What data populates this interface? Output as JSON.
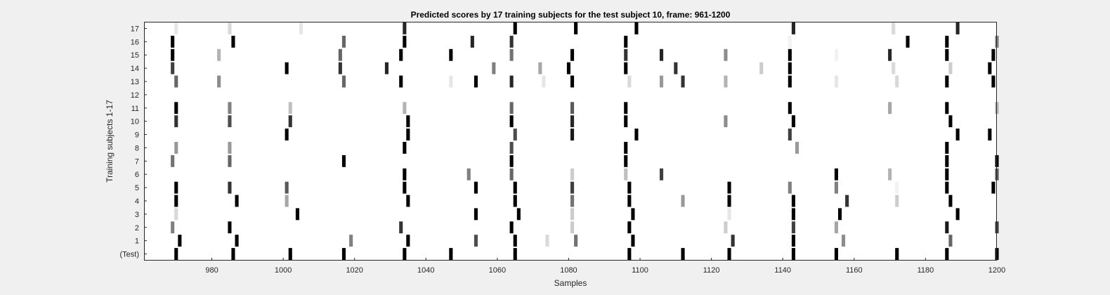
{
  "chart_data": {
    "type": "heatmap",
    "title": "Predicted scores by 17 training subjects for the test subject 10, frame: 961-1200",
    "xlabel": "Samples",
    "ylabel": "Training subjects 1-17",
    "xlim": [
      961,
      1200
    ],
    "xticks": [
      980,
      1000,
      1020,
      1040,
      1060,
      1080,
      1100,
      1120,
      1140,
      1160,
      1180,
      1200
    ],
    "rows": [
      "(Test)",
      "1",
      "2",
      "3",
      "4",
      "5",
      "6",
      "7",
      "8",
      "9",
      "10",
      "11",
      "12",
      "13",
      "14",
      "15",
      "16",
      "17"
    ],
    "colormap": "gray-inverted (1 = black, 0 = white)",
    "grid": false,
    "legend": "none",
    "marks": [
      {
        "row": 0,
        "x": [
          970,
          986,
          1002,
          1017,
          1034,
          1047,
          1065,
          1097,
          1112,
          1125,
          1143,
          1155,
          1172,
          1186,
          1200
        ],
        "v": [
          1,
          1,
          1,
          1,
          1,
          1,
          1,
          1,
          1,
          1,
          1,
          1,
          1,
          1,
          1
        ]
      },
      {
        "row": 1,
        "x": [
          971,
          987,
          1019,
          1035,
          1054,
          1074,
          1065,
          1082,
          1098,
          1126,
          1143,
          1157,
          1187
        ],
        "v": [
          1,
          1,
          0.5,
          1,
          0.7,
          0.15,
          1,
          0.55,
          1,
          0.8,
          1,
          0.45,
          0.6
        ]
      },
      {
        "row": 2,
        "x": [
          969,
          985,
          1033,
          1064,
          1081,
          1097,
          1124,
          1143,
          1155,
          1186,
          1200
        ],
        "v": [
          0.5,
          1,
          0.8,
          1,
          0.2,
          1,
          0.2,
          0.75,
          0.35,
          0.9,
          0.75
        ]
      },
      {
        "row": 3,
        "x": [
          970,
          1004,
          1054,
          1066,
          1081,
          1098,
          1125,
          1143,
          1156,
          1189
        ],
        "v": [
          0.15,
          1,
          1,
          1,
          0.2,
          1,
          0.1,
          1,
          1,
          1
        ]
      },
      {
        "row": 4,
        "x": [
          970,
          987,
          1001,
          1035,
          1065,
          1081,
          1097,
          1112,
          1125,
          1143,
          1158,
          1172,
          1187
        ],
        "v": [
          1,
          1,
          0.35,
          1,
          1,
          0.55,
          1,
          0.4,
          1,
          1,
          0.8,
          0.2,
          1
        ]
      },
      {
        "row": 5,
        "x": [
          970,
          985,
          1001,
          1034,
          1054,
          1065,
          1081,
          1097,
          1125,
          1142,
          1155,
          1172,
          1186,
          1199
        ],
        "v": [
          1,
          0.8,
          0.65,
          1,
          1,
          1,
          0.75,
          1,
          1,
          0.5,
          0.5,
          0.05,
          1,
          1
        ]
      },
      {
        "row": 6,
        "x": [
          1034,
          1052,
          1064,
          1081,
          1096,
          1106,
          1155,
          1170,
          1186,
          1200
        ],
        "v": [
          1,
          0.5,
          0.6,
          0.2,
          0.25,
          0.75,
          1,
          0.3,
          1,
          0.65
        ]
      },
      {
        "row": 7,
        "x": [
          969,
          985,
          1017,
          1064,
          1096,
          1186,
          1200
        ],
        "v": [
          0.55,
          0.6,
          1,
          1,
          1,
          1,
          1
        ]
      },
      {
        "row": 8,
        "x": [
          970,
          985,
          1034,
          1064,
          1096,
          1144,
          1186
        ],
        "v": [
          0.4,
          0.4,
          1,
          0.7,
          1,
          0.4,
          1
        ]
      },
      {
        "row": 9,
        "x": [
          1001,
          1035,
          1065,
          1081,
          1099,
          1142,
          1189,
          1198
        ],
        "v": [
          1,
          1,
          0.7,
          0.9,
          1,
          0.75,
          1,
          1
        ]
      },
      {
        "row": 10,
        "x": [
          970,
          985,
          1002,
          1035,
          1064,
          1081,
          1096,
          1124,
          1143,
          1187
        ],
        "v": [
          0.8,
          0.7,
          0.8,
          1,
          1,
          0.85,
          1,
          0.45,
          1,
          1
        ]
      },
      {
        "row": 11,
        "x": [
          970,
          985,
          1002,
          1034,
          1064,
          1081,
          1096,
          1142,
          1170,
          1186,
          1200
        ],
        "v": [
          1,
          0.5,
          0.25,
          0.3,
          0.6,
          0.65,
          1,
          1,
          0.35,
          1,
          0.3
        ]
      },
      {
        "row": 12,
        "x": [],
        "v": []
      },
      {
        "row": 13,
        "x": [
          970,
          982,
          1017,
          1033,
          1047,
          1054,
          1064,
          1073,
          1081,
          1097,
          1106,
          1112,
          1124,
          1142,
          1155,
          1172,
          1186,
          1199
        ],
        "v": [
          0.6,
          0.45,
          0.6,
          1,
          0.1,
          1,
          0.85,
          0.1,
          1,
          0.15,
          0.4,
          0.8,
          0.3,
          1,
          0.1,
          0.15,
          1,
          1
        ]
      },
      {
        "row": 14,
        "x": [
          969,
          1001,
          1016,
          1029,
          1059,
          1072,
          1080,
          1096,
          1110,
          1134,
          1142,
          1171,
          1187,
          1198
        ],
        "v": [
          0.75,
          1,
          0.8,
          0.85,
          0.5,
          0.35,
          1,
          1,
          0.8,
          0.2,
          1,
          0.15,
          0.2,
          1
        ]
      },
      {
        "row": 15,
        "x": [
          969,
          982,
          1016,
          1033,
          1047,
          1064,
          1081,
          1096,
          1106,
          1124,
          1142,
          1155,
          1170,
          1186,
          1199
        ],
        "v": [
          1,
          0.3,
          0.6,
          1,
          1,
          0.55,
          1,
          0.8,
          0.85,
          0.45,
          1,
          0.05,
          0.85,
          1,
          1
        ]
      },
      {
        "row": 16,
        "x": [
          969,
          986,
          1017,
          1034,
          1053,
          1064,
          1096,
          1142,
          1175,
          1186,
          1200
        ],
        "v": [
          1,
          1,
          0.6,
          1,
          0.85,
          0.8,
          1,
          0.05,
          1,
          1,
          0.5
        ]
      },
      {
        "row": 17,
        "x": [
          970,
          985,
          1005,
          1034,
          1065,
          1082,
          1099,
          1143,
          1171,
          1189
        ],
        "v": [
          0.1,
          0.15,
          0.1,
          0.85,
          1,
          1,
          1,
          0.85,
          0.15,
          0.85
        ]
      }
    ]
  }
}
